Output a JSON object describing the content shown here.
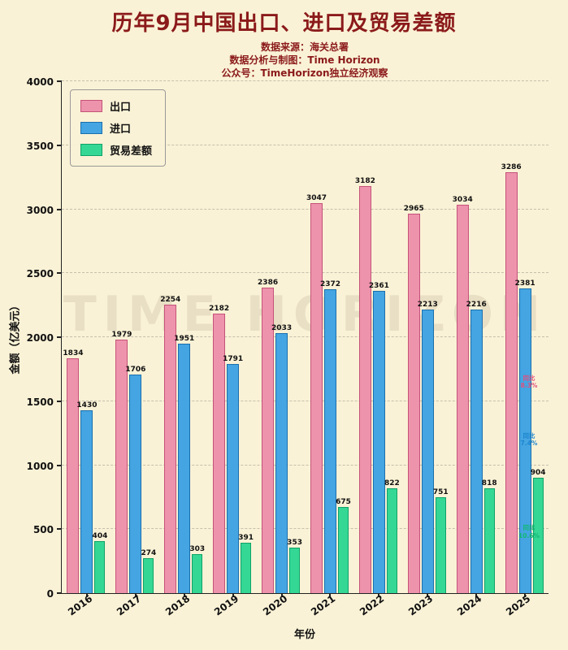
{
  "title": "历年9月中国出口、进口及贸易差额",
  "subtitle_lines": [
    "数据来源：海关总署",
    "数据分析与制图：Time Horizon",
    "公众号：TimeHorizon独立经济观察"
  ],
  "watermark": "TIME HORIZON",
  "colors": {
    "background": "#FAF2D6",
    "title_text": "#8B1A1A",
    "axis_text": "#111111",
    "export_bar": "#EE93AC",
    "import_bar": "#44A5E2",
    "balance_bar": "#35D795"
  },
  "chart_data": {
    "type": "bar",
    "title": "历年9月中国出口、进口及贸易差额",
    "xlabel": "年份",
    "ylabel": "金额（亿美元）",
    "ylim": [
      0,
      4000
    ],
    "ytick_step": 500,
    "grid": "horizontal-dashed",
    "legend_position": "upper-left",
    "categories": [
      "2016",
      "2017",
      "2018",
      "2019",
      "2020",
      "2021",
      "2022",
      "2023",
      "2024",
      "2025"
    ],
    "series": [
      {
        "name": "出口",
        "key": "export",
        "color": "#EE93AC",
        "edge": "#C4537A",
        "values": [
          1834,
          1979,
          2254,
          2182,
          2386,
          3047,
          3182,
          2965,
          3034,
          3286
        ]
      },
      {
        "name": "进口",
        "key": "import",
        "color": "#44A5E2",
        "edge": "#1C6FAE",
        "values": [
          1430,
          1706,
          1951,
          1791,
          2033,
          2372,
          2361,
          2213,
          2216,
          2381
        ]
      },
      {
        "name": "贸易差额",
        "key": "balance",
        "color": "#35D795",
        "edge": "#0FA268",
        "values": [
          404,
          274,
          303,
          391,
          353,
          675,
          822,
          751,
          818,
          904
        ]
      }
    ],
    "annotations": [
      {
        "text": "同比\n8.3%",
        "color": "#E0507E",
        "y_value": 1650
      },
      {
        "text": "同比\n7.4%",
        "color": "#1E86CE",
        "y_value": 1200
      },
      {
        "text": "同比\n10.6%",
        "color": "#12B874",
        "y_value": 480
      }
    ]
  }
}
